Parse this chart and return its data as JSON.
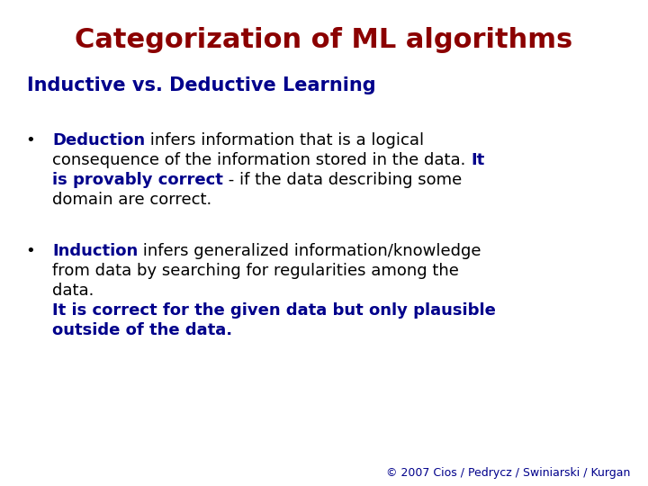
{
  "title": "Categorization of ML algorithms",
  "title_color": "#8B0000",
  "title_fontsize": 22,
  "subtitle": "Inductive vs. Deductive Learning",
  "subtitle_color": "#00008B",
  "subtitle_fontsize": 15,
  "background_color": "#FFFFFF",
  "footer": "© 2007 Cios / Pedrycz / Swiniarski / Kurgan",
  "footer_color": "#00008B",
  "footer_fontsize": 9,
  "body_fontsize": 13,
  "bullet_color": "#000000",
  "black": "#000000",
  "blue": "#00008B"
}
